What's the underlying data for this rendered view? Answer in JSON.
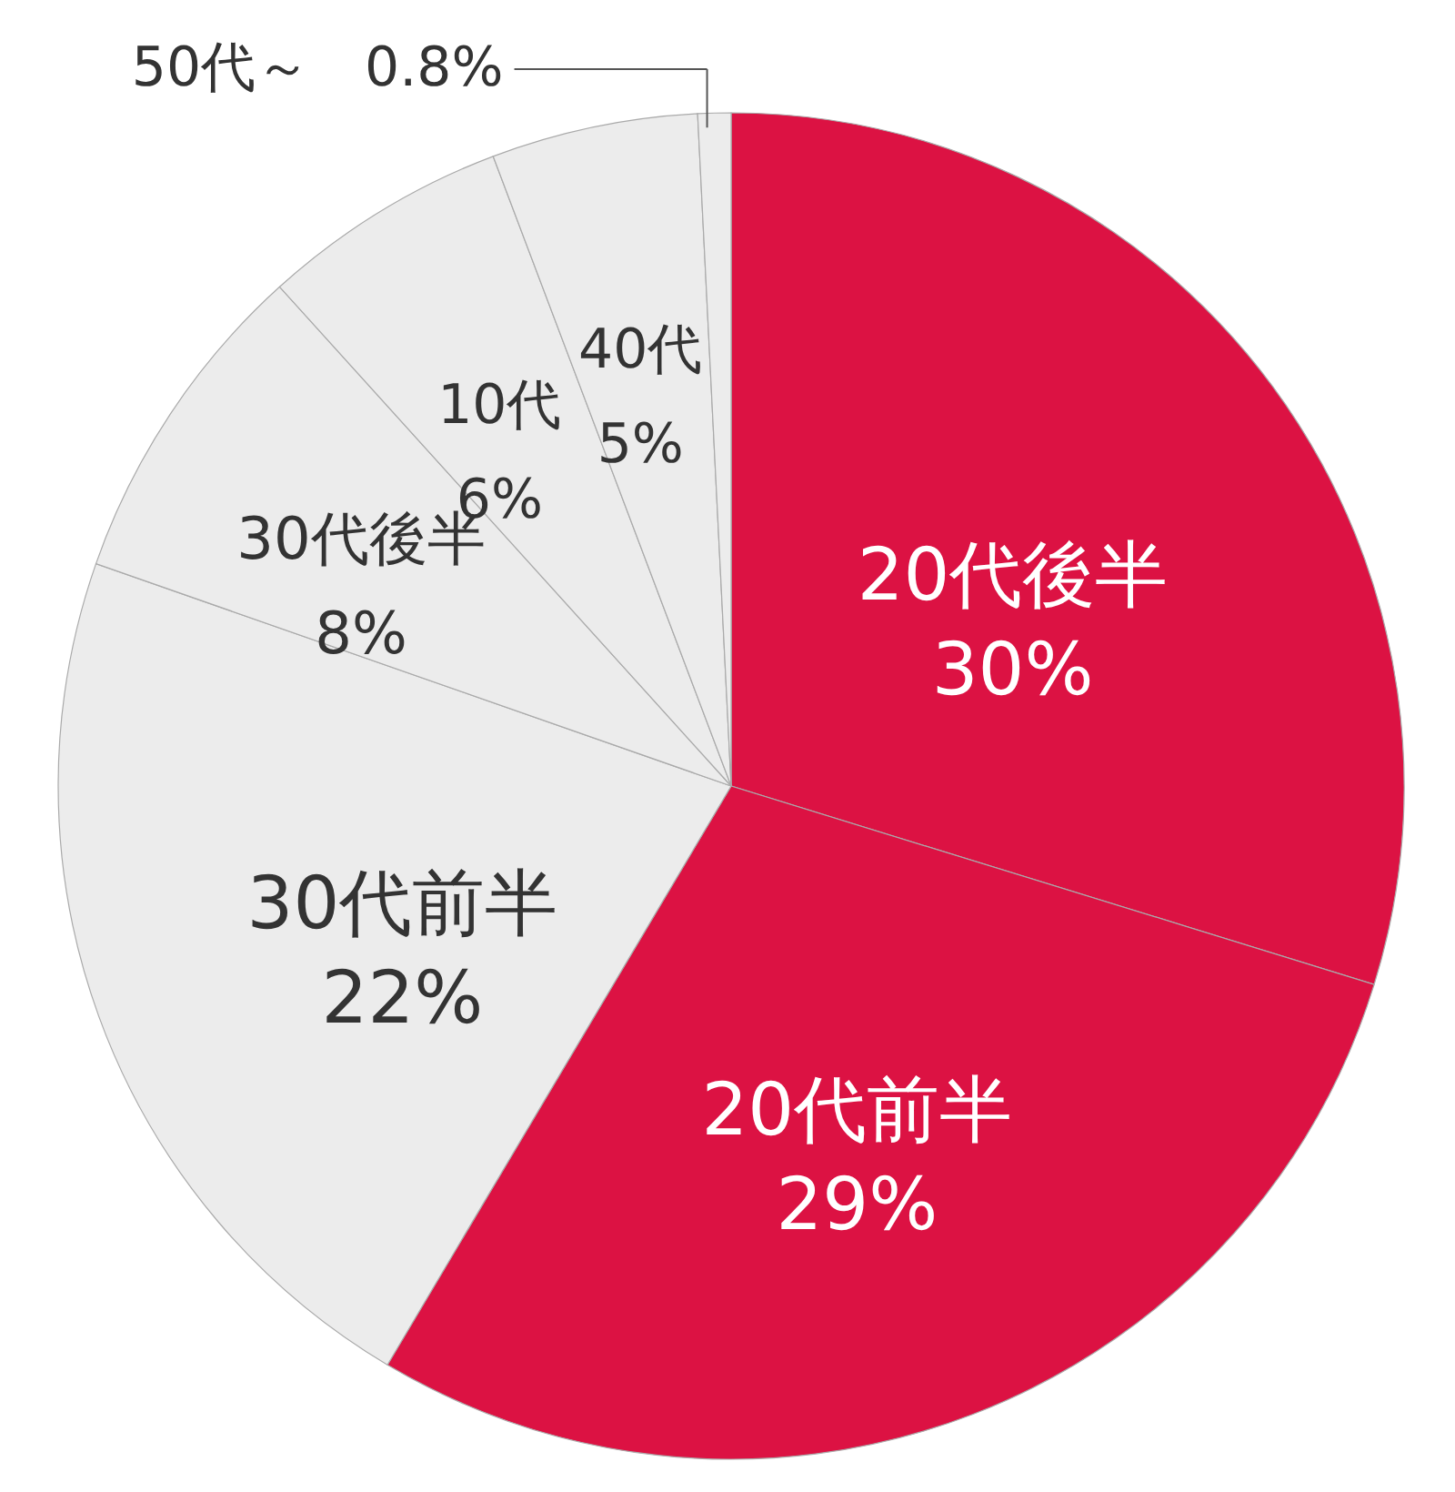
{
  "chart_data": {
    "type": "pie",
    "categories": [
      "20代後半",
      "20代前半",
      "30代前半",
      "30代後半",
      "10代",
      "40代",
      "50代～"
    ],
    "values": [
      30,
      29,
      22,
      8,
      6,
      5,
      0.8
    ],
    "colors": [
      "#dc1243",
      "#dc1243",
      "#ececec",
      "#ececec",
      "#ececec",
      "#ececec",
      "#ececec"
    ],
    "value_labels": [
      "30%",
      "29%",
      "22%",
      "8%",
      "6%",
      "5%",
      "0.8%"
    ]
  }
}
